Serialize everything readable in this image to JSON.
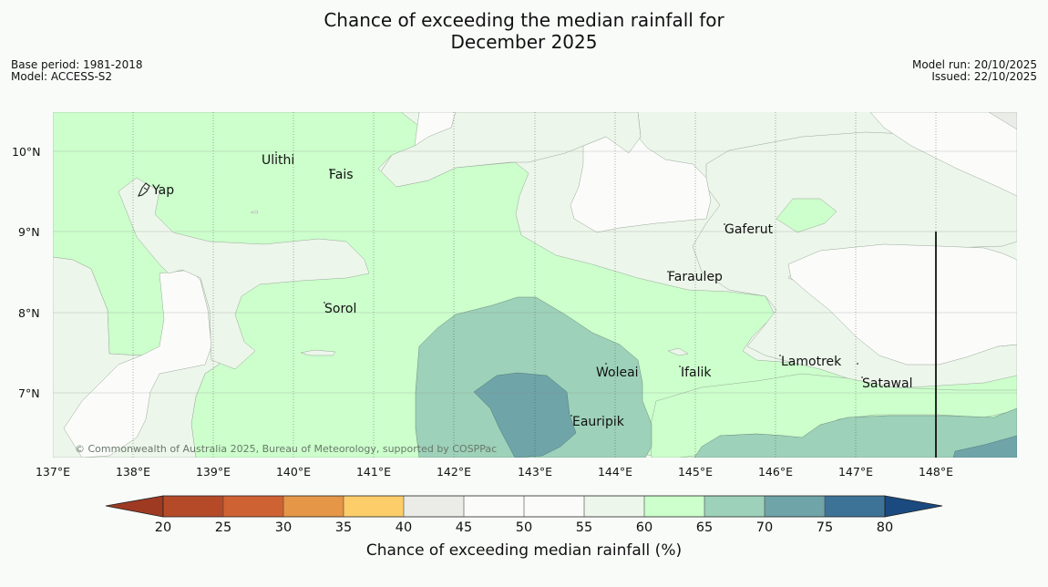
{
  "title_line1": "Chance of exceeding the median rainfall for",
  "title_line2": "December 2025",
  "meta": {
    "base_period": "Base period: 1981-2018",
    "model": "Model: ACCESS-S2",
    "model_run": "Model run: 20/10/2025",
    "issued": "Issued: 22/10/2025"
  },
  "lon_ticks": [
    "137°E",
    "138°E",
    "139°E",
    "140°E",
    "141°E",
    "142°E",
    "143°E",
    "144°E",
    "145°E",
    "146°E",
    "147°E",
    "148°E"
  ],
  "lat_ticks": [
    "10°N",
    "9°N",
    "8°N",
    "7°N"
  ],
  "places": [
    "Ulithi",
    "Fais",
    "Yap",
    "Gaferut",
    "Faraulep",
    "Sorol",
    "Lamotrek",
    "Woleai",
    "Ifalik",
    "Satawal",
    "Eauripik"
  ],
  "copyright": "© Commonwealth of Australia 2025, Bureau of Meteorology, supported by COSPPac",
  "legend": {
    "ticks": [
      "20",
      "25",
      "30",
      "35",
      "40",
      "45",
      "50",
      "55",
      "60",
      "65",
      "70",
      "75",
      "80"
    ],
    "label": "Chance of exceeding median rainfall (%)",
    "colors": {
      "under20": "#9e3a22",
      "c20_25": "#b54a28",
      "c25_30": "#cf6232",
      "c30_35": "#e59647",
      "c35_40": "#fdcd6a",
      "c40_45": "#ebece7",
      "c45_50": "#fbfcfa",
      "c50_55": "#fbfcfa",
      "c55_60": "#ecf6ea",
      "c60_65": "#ccffcc",
      "c65_70": "#9dd1b9",
      "c70_75": "#6fa4a8",
      "c75_80": "#3e7398",
      "over80": "#1a4a80"
    }
  }
}
